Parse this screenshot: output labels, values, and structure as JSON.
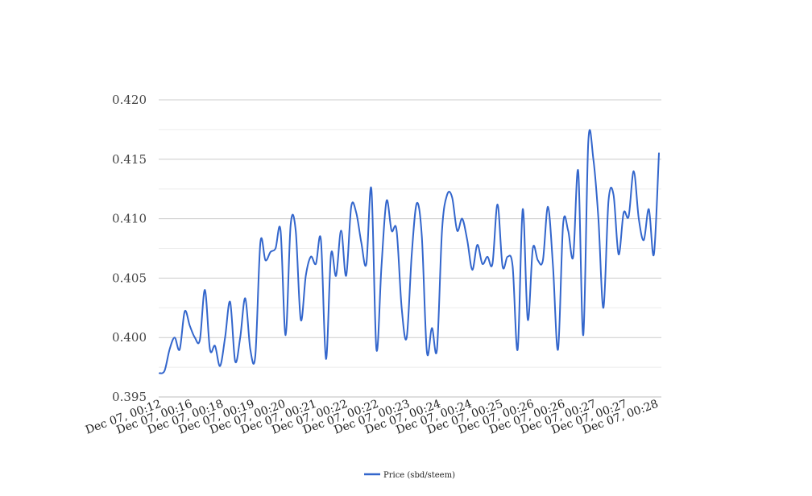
{
  "chart_data": {
    "type": "line",
    "title": "",
    "xlabel": "",
    "ylabel": "",
    "ylim": [
      0.395,
      0.42
    ],
    "y_ticks": [
      "0.395",
      "0.400",
      "0.405",
      "0.410",
      "0.415",
      "0.420"
    ],
    "y_tick_values": [
      0.395,
      0.4,
      0.405,
      0.41,
      0.415,
      0.42
    ],
    "x_tick_labels": [
      "Dec 07, 00:12",
      "Dec 07, 00:16",
      "Dec 07, 00:18",
      "Dec 07, 00:19",
      "Dec 07, 00:20",
      "Dec 07, 00:21",
      "Dec 07, 00:22",
      "Dec 07, 00:22",
      "Dec 07, 00:23",
      "Dec 07, 00:24",
      "Dec 07, 00:24",
      "Dec 07, 00:25",
      "Dec 07, 00:26",
      "Dec 07, 00:26",
      "Dec 07, 00:27",
      "Dec 07, 00:27",
      "Dec 07, 00:28"
    ],
    "grid": true,
    "legend_position": "bottom",
    "series": [
      {
        "name": "Price (sbd/steem)",
        "color": "#3366cc",
        "values": [
          0.397,
          0.3972,
          0.399,
          0.4,
          0.399,
          0.4022,
          0.401,
          0.4,
          0.3998,
          0.404,
          0.399,
          0.3993,
          0.3976,
          0.4,
          0.403,
          0.398,
          0.4,
          0.4033,
          0.399,
          0.3985,
          0.408,
          0.4065,
          0.4072,
          0.4075,
          0.409,
          0.4002,
          0.4095,
          0.409,
          0.4015,
          0.4052,
          0.4068,
          0.4062,
          0.4082,
          0.3982,
          0.407,
          0.4052,
          0.409,
          0.4052,
          0.411,
          0.4105,
          0.408,
          0.4062,
          0.4125,
          0.399,
          0.406,
          0.4115,
          0.409,
          0.409,
          0.4025,
          0.4,
          0.407,
          0.4113,
          0.4085,
          0.3988,
          0.4008,
          0.399,
          0.409,
          0.412,
          0.4118,
          0.409,
          0.41,
          0.4082,
          0.4057,
          0.4078,
          0.4062,
          0.4068,
          0.4062,
          0.4112,
          0.406,
          0.4068,
          0.406,
          0.399,
          0.4108,
          0.4015,
          0.4075,
          0.4065,
          0.4065,
          0.411,
          0.406,
          0.399,
          0.4095,
          0.409,
          0.4068,
          0.414,
          0.4002,
          0.4165,
          0.415,
          0.41,
          0.4025,
          0.4115,
          0.412,
          0.407,
          0.4105,
          0.4102,
          0.414,
          0.41,
          0.4082,
          0.4108,
          0.407,
          0.4155
        ]
      }
    ]
  }
}
